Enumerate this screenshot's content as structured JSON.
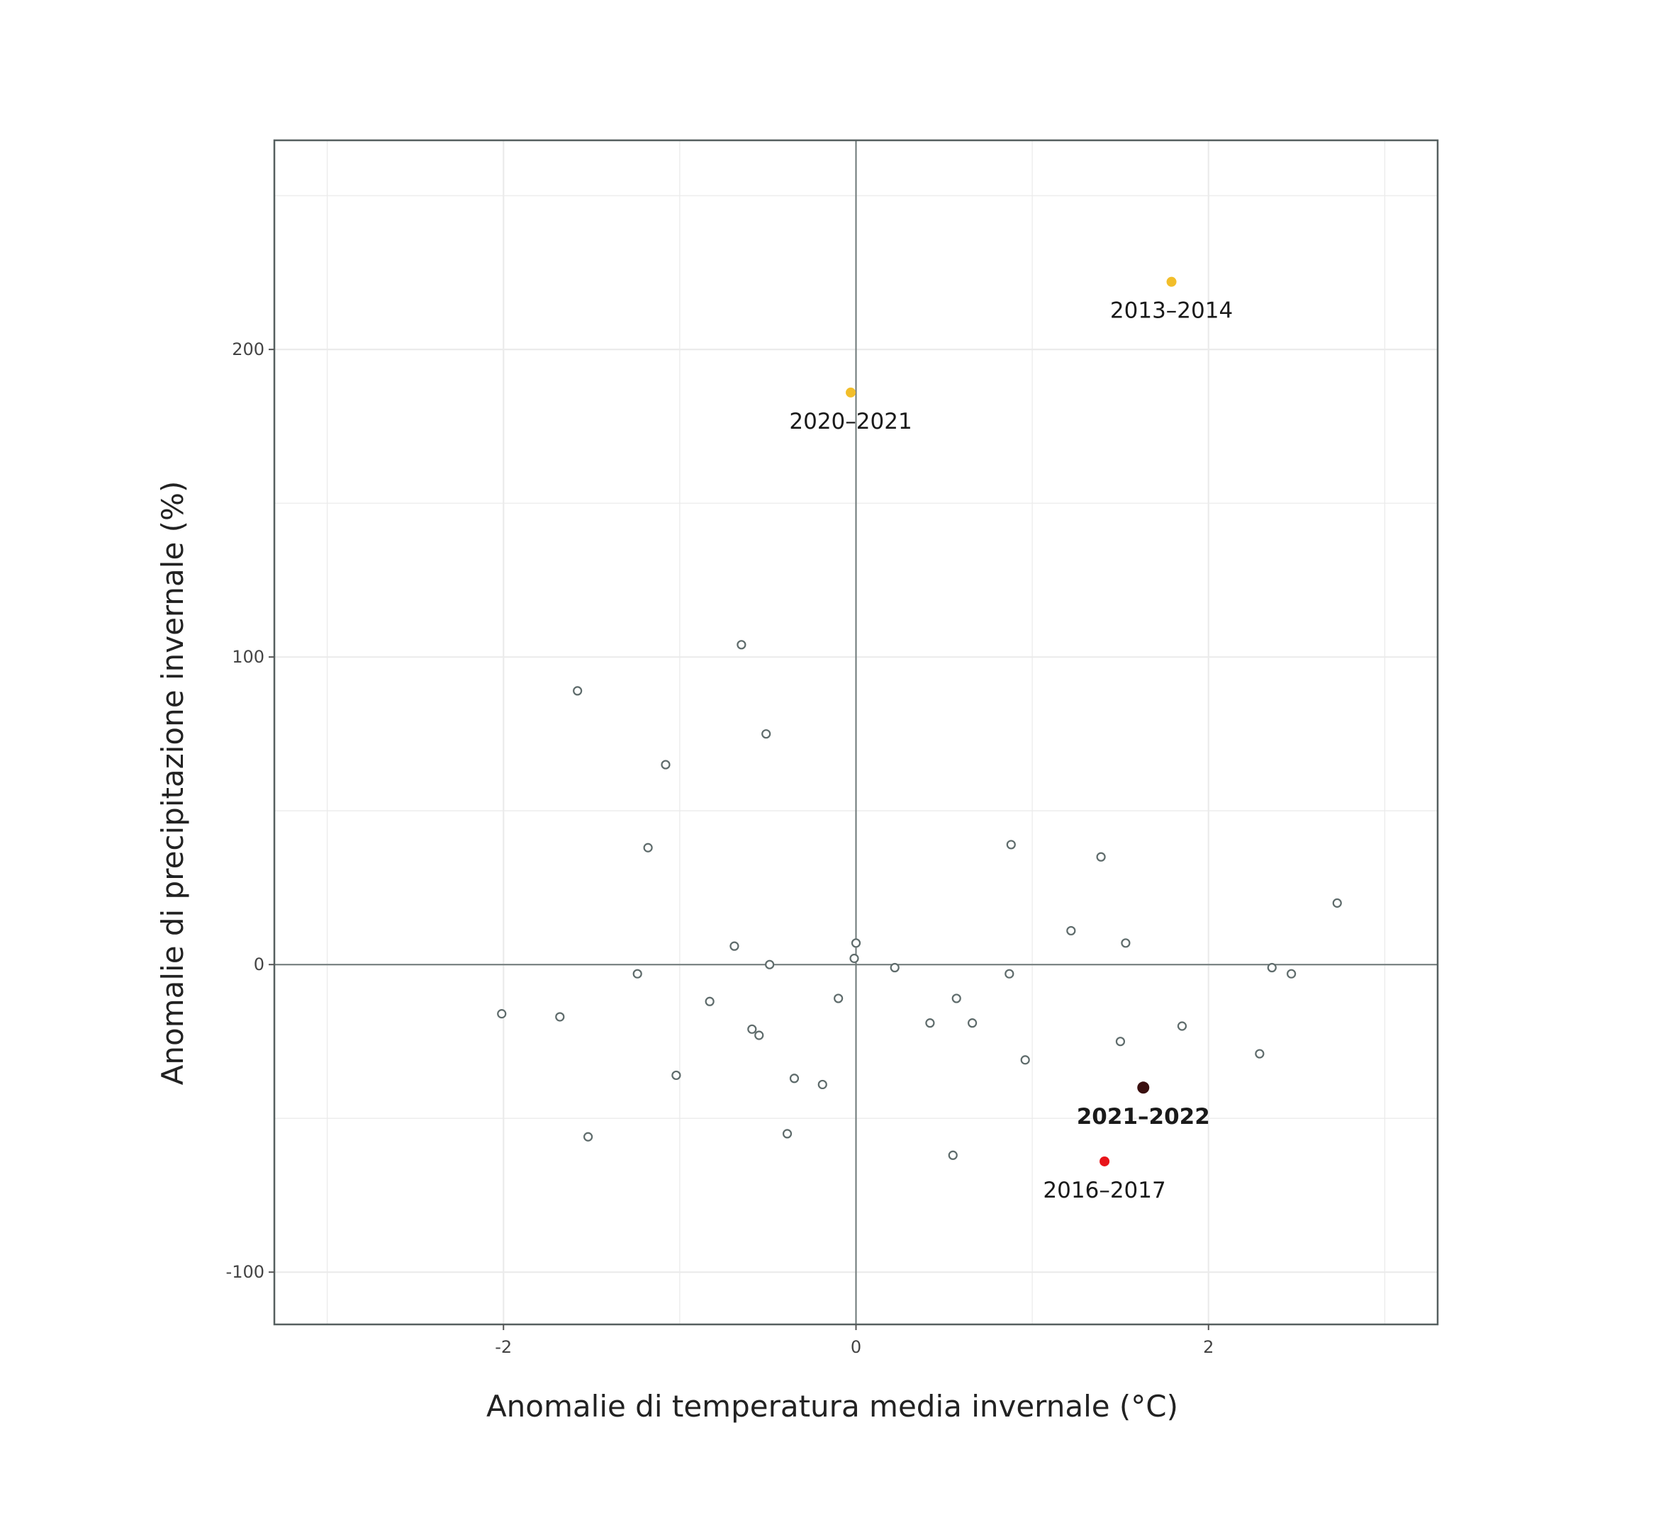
{
  "chart_data": {
    "type": "scatter",
    "title": "",
    "xlabel": "Anomalie di temperatura media invernale (°C)",
    "ylabel": "Anomalie di precipitazione invernale (%)",
    "xlim": [
      -3.3,
      3.3
    ],
    "ylim": [
      -117,
      268
    ],
    "x_ticks": [
      -2,
      0,
      2
    ],
    "y_ticks": [
      -100,
      0,
      100,
      200
    ],
    "x_tick_labels": [
      "-2",
      "0",
      "2"
    ],
    "y_tick_labels": [
      "-100",
      "0",
      "100",
      "200"
    ],
    "grid": true,
    "zero_lines": true,
    "colors": {
      "grid": "#ebebeb",
      "panel_border": "#555f5f",
      "zero_line": "#6e7878",
      "point_stroke": "#5e6b6b",
      "yellow": "#f2be2a",
      "red": "#e8141a",
      "dark": "#3a0f0f"
    },
    "highlighted": [
      {
        "label": "2013–2014",
        "x": 1.79,
        "y": 222,
        "color": "#f2be2a",
        "bold": false
      },
      {
        "label": "2020–2021",
        "x": -0.03,
        "y": 186,
        "color": "#f2be2a",
        "bold": false
      },
      {
        "label": "2021–2022",
        "x": 1.63,
        "y": -40,
        "color": "#3a0f0f",
        "bold": true
      },
      {
        "label": "2016–2017",
        "x": 1.41,
        "y": -64,
        "color": "#e8141a",
        "bold": false
      }
    ],
    "points": [
      {
        "x": -0.65,
        "y": 104
      },
      {
        "x": -1.58,
        "y": 89
      },
      {
        "x": -0.51,
        "y": 75
      },
      {
        "x": -1.08,
        "y": 65
      },
      {
        "x": -1.18,
        "y": 38
      },
      {
        "x": 0.88,
        "y": 39
      },
      {
        "x": 1.39,
        "y": 35
      },
      {
        "x": 2.73,
        "y": 20
      },
      {
        "x": 1.22,
        "y": 11
      },
      {
        "x": -0.69,
        "y": 6
      },
      {
        "x": 0.0,
        "y": 7
      },
      {
        "x": 1.53,
        "y": 7
      },
      {
        "x": -0.01,
        "y": 2
      },
      {
        "x": -0.49,
        "y": 0
      },
      {
        "x": 0.22,
        "y": -1
      },
      {
        "x": -1.24,
        "y": -3
      },
      {
        "x": 0.87,
        "y": -3
      },
      {
        "x": 2.36,
        "y": -1
      },
      {
        "x": 2.47,
        "y": -3
      },
      {
        "x": 0.57,
        "y": -11
      },
      {
        "x": -0.1,
        "y": -11
      },
      {
        "x": -0.83,
        "y": -12
      },
      {
        "x": -2.01,
        "y": -16
      },
      {
        "x": -1.68,
        "y": -17
      },
      {
        "x": 0.42,
        "y": -19
      },
      {
        "x": 0.66,
        "y": -19
      },
      {
        "x": 1.85,
        "y": -20
      },
      {
        "x": -0.59,
        "y": -21
      },
      {
        "x": -0.55,
        "y": -23
      },
      {
        "x": 1.5,
        "y": -25
      },
      {
        "x": 2.29,
        "y": -29
      },
      {
        "x": 0.96,
        "y": -31
      },
      {
        "x": -1.02,
        "y": -36
      },
      {
        "x": -0.35,
        "y": -37
      },
      {
        "x": -0.19,
        "y": -39
      },
      {
        "x": -0.39,
        "y": -55
      },
      {
        "x": -1.52,
        "y": -56
      },
      {
        "x": 0.55,
        "y": -62
      }
    ]
  }
}
